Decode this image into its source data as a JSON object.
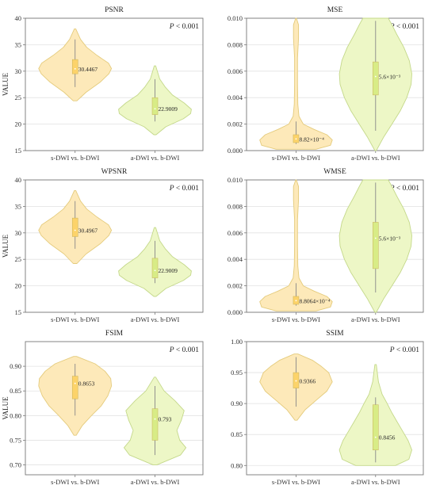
{
  "colors": {
    "s_fill": "#fde9b9",
    "s_edge": "#e4cb7c",
    "s_box": "#fcd36a",
    "a_fill": "#edf7c6",
    "a_edge": "#c4d88a",
    "a_box": "#d8ec86",
    "grid": "#e2e2e2",
    "axis": "#777777",
    "whisker": "#888888"
  },
  "chart_data": [
    {
      "type": "violin",
      "title": "PSNR",
      "ylabel": "VALUE",
      "annotation_p": "P",
      "annotation_rest": " < 0.001",
      "ylim": [
        15,
        40
      ],
      "yticks": [
        15,
        20,
        25,
        30,
        35,
        40
      ],
      "ytick_labels": [
        "15",
        "20",
        "25",
        "30",
        "35",
        "40"
      ],
      "grid": true,
      "categories": [
        "s-DWI vs. b-DWI",
        "a-DWI vs. b-DWI"
      ],
      "series": [
        {
          "min": 24.4,
          "max": 38,
          "whisker": [
            27,
            36
          ],
          "q1": 29.5,
          "q3": 32.2,
          "median": 30.4467,
          "median_label": "30.4467",
          "density": [
            [
              24.4,
              0.05
            ],
            [
              26,
              0.3
            ],
            [
              28,
              0.7
            ],
            [
              29.5,
              0.93
            ],
            [
              30.5,
              1
            ],
            [
              31.5,
              0.92
            ],
            [
              33,
              0.6
            ],
            [
              34.5,
              0.32
            ],
            [
              36,
              0.15
            ],
            [
              38,
              0.02
            ]
          ]
        },
        {
          "min": 18,
          "max": 31,
          "whisker": [
            20.5,
            28.5
          ],
          "q1": 21.8,
          "q3": 25,
          "median": 22.9009,
          "median_label": "22.9009",
          "density": [
            [
              18,
              0.03
            ],
            [
              19.5,
              0.3
            ],
            [
              21,
              0.78
            ],
            [
              22,
              0.98
            ],
            [
              22.8,
              1
            ],
            [
              24,
              0.8
            ],
            [
              25.5,
              0.48
            ],
            [
              27,
              0.28
            ],
            [
              28.5,
              0.13
            ],
            [
              31,
              0.02
            ]
          ]
        }
      ]
    },
    {
      "type": "violin",
      "title": "MSE",
      "ylabel": "",
      "annotation_p": "P",
      "annotation_rest": " < 0.001",
      "ylim": [
        0,
        0.01
      ],
      "yticks": [
        0,
        0.002,
        0.004,
        0.006,
        0.008,
        0.01
      ],
      "ytick_labels": [
        "0.000",
        "0.002",
        "0.004",
        "0.006",
        "0.008",
        "0.010"
      ],
      "grid": true,
      "categories": [
        "s-DWI vs. b-DWI",
        "a-DWI vs. b-DWI"
      ],
      "series": [
        {
          "min": 0.0001,
          "max": 0.01,
          "whisker": [
            0.0005,
            0.0022
          ],
          "q1": 0.0006,
          "q3": 0.0012,
          "median": 0.000882,
          "median_label": "8.82×10⁻⁴",
          "density": [
            [
              0.0001,
              0.55
            ],
            [
              0.0004,
              0.95
            ],
            [
              0.0008,
              1
            ],
            [
              0.0012,
              0.85
            ],
            [
              0.0016,
              0.5
            ],
            [
              0.002,
              0.2
            ],
            [
              0.0026,
              0.08
            ],
            [
              0.0035,
              0.05
            ],
            [
              0.005,
              0.04
            ],
            [
              0.007,
              0.04
            ],
            [
              0.0085,
              0.07
            ],
            [
              0.0095,
              0.07
            ],
            [
              0.01,
              0.01
            ]
          ]
        },
        {
          "min": 0,
          "max": 0.01,
          "whisker": [
            0.0015,
            0.0098
          ],
          "q1": 0.0042,
          "q3": 0.0067,
          "median": 0.0056,
          "median_label": "5.6×10⁻³",
          "density": [
            [
              0,
              0.02
            ],
            [
              0.001,
              0.22
            ],
            [
              0.002,
              0.45
            ],
            [
              0.003,
              0.68
            ],
            [
              0.004,
              0.86
            ],
            [
              0.005,
              0.98
            ],
            [
              0.0058,
              1
            ],
            [
              0.0068,
              0.93
            ],
            [
              0.0078,
              0.78
            ],
            [
              0.0088,
              0.58
            ],
            [
              0.0095,
              0.45
            ],
            [
              0.01,
              0.35
            ]
          ]
        }
      ]
    },
    {
      "type": "violin",
      "title": "WPSNR",
      "ylabel": "VALUE",
      "annotation_p": "P",
      "annotation_rest": " < 0.001",
      "ylim": [
        15,
        40
      ],
      "yticks": [
        15,
        20,
        25,
        30,
        35,
        40
      ],
      "ytick_labels": [
        "15",
        "20",
        "25",
        "30",
        "35",
        "40"
      ],
      "grid": true,
      "categories": [
        "s-DWI vs. b-DWI",
        "a-DWI vs. b-DWI"
      ],
      "series": [
        {
          "min": 24.2,
          "max": 38,
          "whisker": [
            27,
            36
          ],
          "q1": 29.3,
          "q3": 32.8,
          "median": 30.4967,
          "median_label": "30.4967",
          "density": [
            [
              24.2,
              0.05
            ],
            [
              26,
              0.3
            ],
            [
              28,
              0.7
            ],
            [
              29.5,
              0.93
            ],
            [
              30.5,
              1
            ],
            [
              31.5,
              0.92
            ],
            [
              33,
              0.6
            ],
            [
              34.5,
              0.32
            ],
            [
              36,
              0.15
            ],
            [
              38,
              0.02
            ]
          ]
        },
        {
          "min": 18,
          "max": 31,
          "whisker": [
            20.5,
            28.5
          ],
          "q1": 21.5,
          "q3": 25.2,
          "median": 22.9009,
          "median_label": "22.9009",
          "density": [
            [
              18,
              0.03
            ],
            [
              19.5,
              0.3
            ],
            [
              21,
              0.78
            ],
            [
              22,
              0.98
            ],
            [
              22.8,
              1
            ],
            [
              24,
              0.8
            ],
            [
              25.5,
              0.48
            ],
            [
              27,
              0.28
            ],
            [
              28.5,
              0.13
            ],
            [
              31,
              0.02
            ]
          ]
        }
      ]
    },
    {
      "type": "violin",
      "title": "WMSE",
      "ylabel": "",
      "annotation_p": "P",
      "annotation_rest": " < 0.001",
      "ylim": [
        0,
        0.01
      ],
      "yticks": [
        0,
        0.002,
        0.004,
        0.006,
        0.008,
        0.01
      ],
      "ytick_labels": [
        "0.000",
        "0.002",
        "0.004",
        "0.006",
        "0.008",
        "0.010"
      ],
      "grid": true,
      "categories": [
        "s-DWI vs. b-DWI",
        "a-DWI vs. b-DWI"
      ],
      "series": [
        {
          "min": 0.0001,
          "max": 0.01,
          "whisker": [
            0.0005,
            0.0022
          ],
          "q1": 0.0006,
          "q3": 0.0012,
          "median": 0.00088064,
          "median_label": "8.8064×10⁻⁴",
          "density": [
            [
              0.0001,
              0.55
            ],
            [
              0.0004,
              0.95
            ],
            [
              0.0008,
              1
            ],
            [
              0.0012,
              0.85
            ],
            [
              0.0016,
              0.5
            ],
            [
              0.002,
              0.2
            ],
            [
              0.0026,
              0.08
            ],
            [
              0.0035,
              0.05
            ],
            [
              0.005,
              0.04
            ],
            [
              0.007,
              0.04
            ],
            [
              0.0085,
              0.07
            ],
            [
              0.0095,
              0.07
            ],
            [
              0.01,
              0.01
            ]
          ]
        },
        {
          "min": 0,
          "max": 0.01,
          "whisker": [
            0.0015,
            0.0098
          ],
          "q1": 0.0033,
          "q3": 0.0068,
          "median": 0.0056,
          "median_label": "5.6×10⁻³",
          "density": [
            [
              0,
              0.02
            ],
            [
              0.001,
              0.22
            ],
            [
              0.002,
              0.45
            ],
            [
              0.003,
              0.68
            ],
            [
              0.004,
              0.86
            ],
            [
              0.005,
              0.98
            ],
            [
              0.0058,
              1
            ],
            [
              0.0068,
              0.93
            ],
            [
              0.0078,
              0.78
            ],
            [
              0.0088,
              0.58
            ],
            [
              0.0095,
              0.45
            ],
            [
              0.01,
              0.35
            ]
          ]
        }
      ]
    },
    {
      "type": "violin",
      "title": "FSIM",
      "ylabel": "VALUE",
      "annotation_p": "P",
      "annotation_rest": " < 0.001",
      "ylim": [
        0.68,
        0.95
      ],
      "yticks": [
        0.7,
        0.75,
        0.8,
        0.85,
        0.9
      ],
      "ytick_labels": [
        "0.70",
        "0.75",
        "0.80",
        "0.85",
        "0.90"
      ],
      "grid": true,
      "categories": [
        "s-DWI vs. b-DWI",
        "a-DWI vs. b-DWI"
      ],
      "series": [
        {
          "min": 0.76,
          "max": 0.92,
          "whisker": [
            0.8,
            0.905
          ],
          "q1": 0.834,
          "q3": 0.88,
          "median": 0.8653,
          "median_label": "0.8653",
          "density": [
            [
              0.76,
              0.03
            ],
            [
              0.78,
              0.2
            ],
            [
              0.8,
              0.45
            ],
            [
              0.82,
              0.72
            ],
            [
              0.84,
              0.9
            ],
            [
              0.86,
              1
            ],
            [
              0.875,
              0.98
            ],
            [
              0.89,
              0.82
            ],
            [
              0.905,
              0.55
            ],
            [
              0.92,
              0.04
            ]
          ]
        },
        {
          "min": 0.7,
          "max": 0.878,
          "whisker": [
            0.72,
            0.86
          ],
          "q1": 0.75,
          "q3": 0.814,
          "median": 0.793,
          "median_label": "0.793",
          "density": [
            [
              0.7,
              0.05
            ],
            [
              0.72,
              0.7
            ],
            [
              0.735,
              0.85
            ],
            [
              0.75,
              0.68
            ],
            [
              0.77,
              0.6
            ],
            [
              0.79,
              0.72
            ],
            [
              0.81,
              0.8
            ],
            [
              0.83,
              0.55
            ],
            [
              0.85,
              0.25
            ],
            [
              0.878,
              0.02
            ]
          ]
        }
      ]
    },
    {
      "type": "violin",
      "title": "SSIM",
      "ylabel": "",
      "annotation_p": "P",
      "annotation_rest": " < 0.001",
      "ylim": [
        0.785,
        1.0
      ],
      "yticks": [
        0.8,
        0.85,
        0.9,
        0.95,
        1.0
      ],
      "ytick_labels": [
        "0.80",
        "0.85",
        "0.90",
        "0.95",
        "1.00"
      ],
      "grid": true,
      "categories": [
        "s-DWI vs. b-DWI",
        "a-DWI vs. b-DWI"
      ],
      "series": [
        {
          "min": 0.873,
          "max": 0.98,
          "whisker": [
            0.895,
            0.975
          ],
          "q1": 0.925,
          "q3": 0.95,
          "median": 0.9366,
          "median_label": "0.9366",
          "density": [
            [
              0.873,
              0.03
            ],
            [
              0.89,
              0.25
            ],
            [
              0.905,
              0.55
            ],
            [
              0.92,
              0.85
            ],
            [
              0.935,
              1
            ],
            [
              0.95,
              0.9
            ],
            [
              0.96,
              0.7
            ],
            [
              0.97,
              0.45
            ],
            [
              0.98,
              0.05
            ]
          ]
        },
        {
          "min": 0.8,
          "max": 0.963,
          "whisker": [
            0.805,
            0.91
          ],
          "q1": 0.825,
          "q3": 0.898,
          "median": 0.8456,
          "median_label": "0.8456",
          "density": [
            [
              0.8,
              0.55
            ],
            [
              0.81,
              0.92
            ],
            [
              0.825,
              1
            ],
            [
              0.84,
              0.9
            ],
            [
              0.855,
              0.75
            ],
            [
              0.87,
              0.6
            ],
            [
              0.885,
              0.45
            ],
            [
              0.9,
              0.32
            ],
            [
              0.915,
              0.18
            ],
            [
              0.935,
              0.08
            ],
            [
              0.963,
              0.02
            ]
          ]
        }
      ]
    }
  ]
}
